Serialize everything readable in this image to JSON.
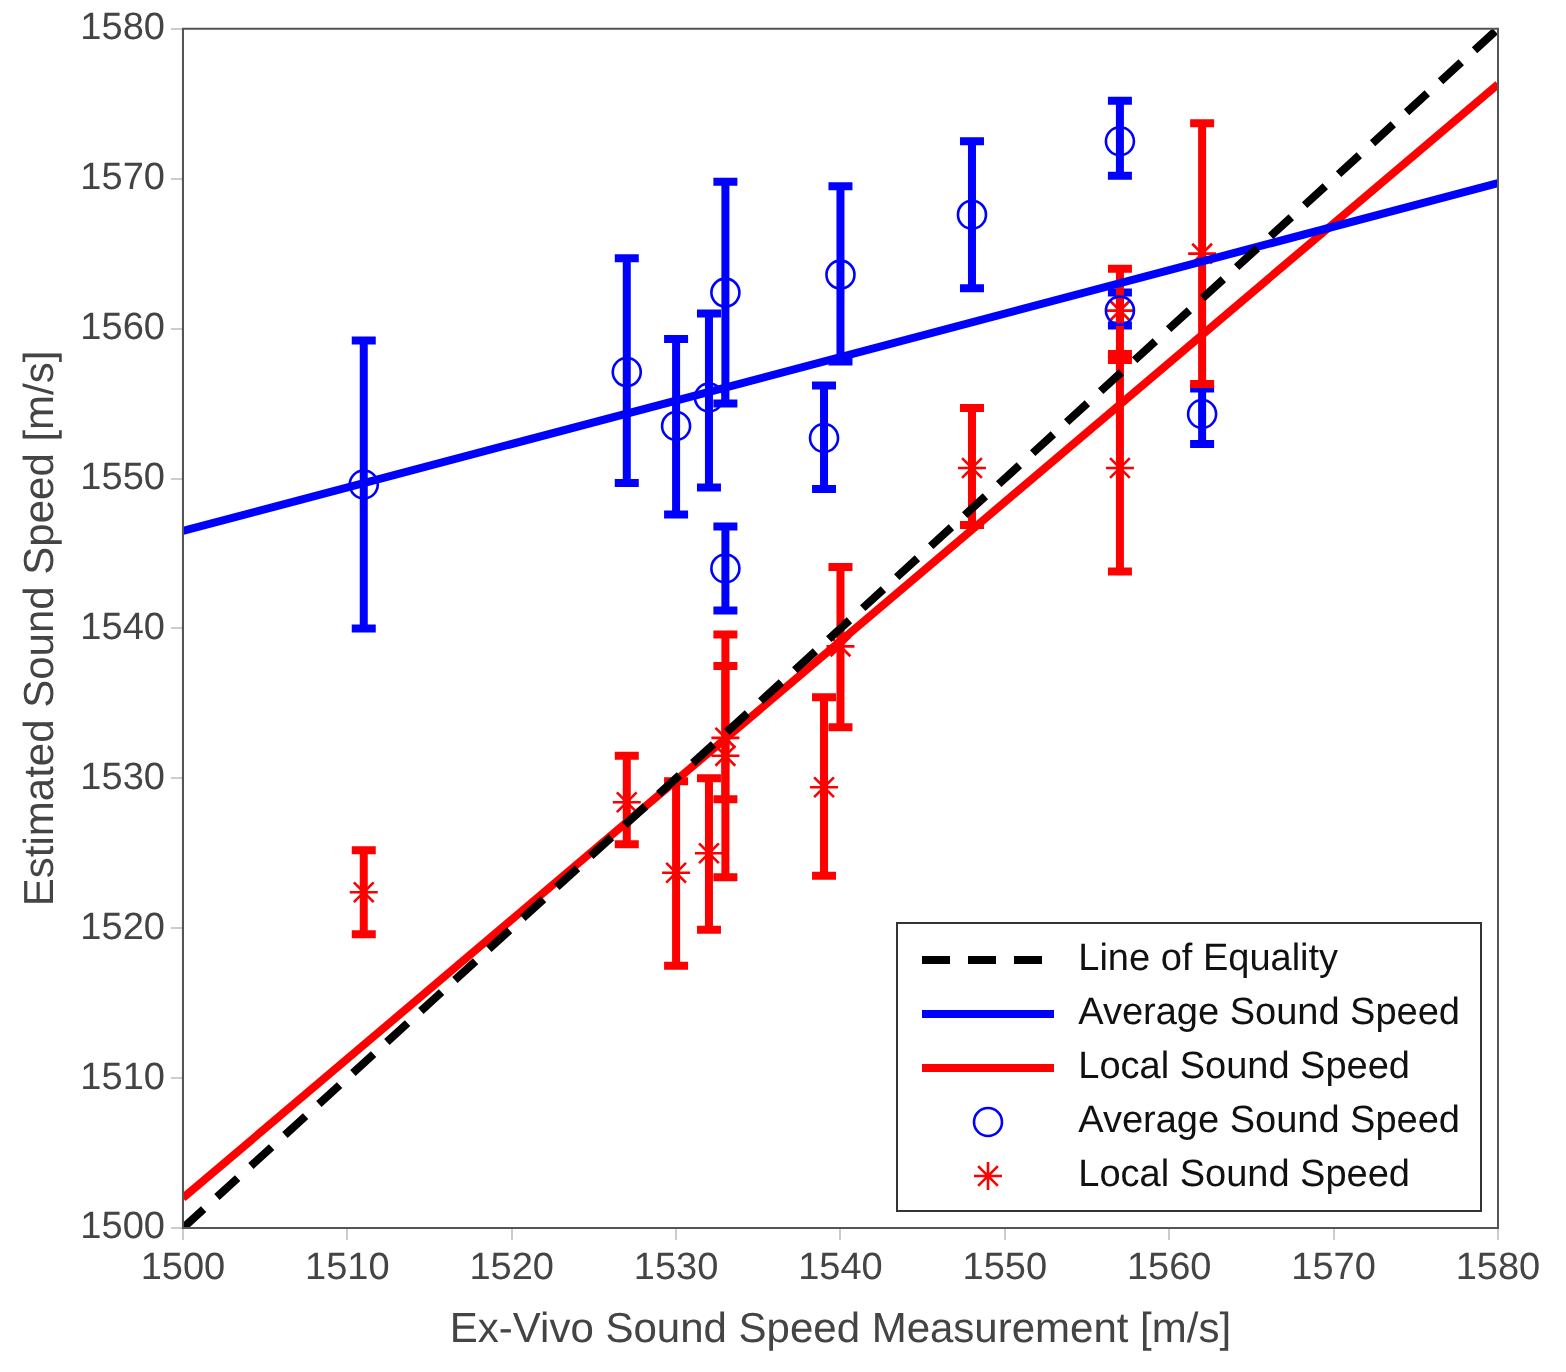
{
  "chart_data": {
    "type": "scatter",
    "xlabel": "Ex-Vivo Sound Speed Measurement [m/s]",
    "ylabel": "Estimated Sound Speed [m/s]",
    "xlim": [
      1500,
      1580
    ],
    "xticks": [
      1500,
      1510,
      1520,
      1530,
      1540,
      1550,
      1560,
      1570,
      1580
    ],
    "ylim": [
      1500,
      1580
    ],
    "yticks": [
      1500,
      1510,
      1520,
      1530,
      1540,
      1550,
      1560,
      1570,
      1580
    ],
    "legend": "bottom right",
    "series": [
      {
        "name": "Line of Equality",
        "type": "line",
        "color": "#000000",
        "line_style": "dashed",
        "marker": "none",
        "x": [
          1500,
          1580
        ],
        "values": [
          1500,
          1580
        ]
      },
      {
        "name": "Average Sound Speed",
        "type": "line",
        "color": "#0000ff",
        "line_style": "solid",
        "marker": "none",
        "x": [
          1500,
          1580
        ],
        "values": [
          1546.5,
          1569.7
        ]
      },
      {
        "name": "Local Sound Speed",
        "type": "line",
        "color": "#ff0000",
        "line_style": "solid",
        "marker": "none",
        "x": [
          1500,
          1580
        ],
        "values": [
          1502,
          1576.3
        ]
      },
      {
        "name": "Average Sound Speed",
        "type": "scatter",
        "color": "#0000ff",
        "marker": "circle",
        "x": [
          1511,
          1527,
          1530,
          1532,
          1533,
          1533,
          1539,
          1540,
          1548,
          1557,
          1557,
          1562
        ],
        "values": [
          1549.6,
          1557.1,
          1553.5,
          1555.4,
          1562.4,
          1544.0,
          1552.7,
          1563.6,
          1567.6,
          1572.5,
          1561.2,
          1554.3
        ],
        "errors": [
          [
            1540,
            1559.2
          ],
          [
            1549.7,
            1564.7
          ],
          [
            1547.6,
            1559.3
          ],
          [
            1549.4,
            1561
          ],
          [
            1555,
            1569.8
          ],
          [
            1541.2,
            1546.8
          ],
          [
            1549.3,
            1556.2
          ],
          [
            1557.8,
            1569.5
          ],
          [
            1562.7,
            1572.5
          ],
          [
            1570.2,
            1575.2
          ],
          [
            1560.2,
            1562.4
          ],
          [
            1552.3,
            1556
          ]
        ]
      },
      {
        "name": "Local Sound Speed",
        "type": "scatter",
        "color": "#ff0000",
        "marker": "cross",
        "x": [
          1511,
          1527,
          1530,
          1532,
          1533,
          1533,
          1539,
          1540,
          1548,
          1557,
          1557,
          1562
        ],
        "values": [
          1522.4,
          1528.4,
          1523.7,
          1525,
          1532.7,
          1531.5,
          1529.4,
          1538.8,
          1550.7,
          1561.2,
          1550.7,
          1565
        ],
        "errors": [
          [
            1519.6,
            1525.2
          ],
          [
            1525.6,
            1531.5
          ],
          [
            1517.5,
            1529.8
          ],
          [
            1519.9,
            1530
          ],
          [
            1528.6,
            1539.6
          ],
          [
            1523.4,
            1537.5
          ],
          [
            1523.5,
            1535.4
          ],
          [
            1533.4,
            1544.1
          ],
          [
            1546.9,
            1554.7
          ],
          [
            1557.9,
            1564
          ],
          [
            1543.8,
            1558.3
          ],
          [
            1556.3,
            1573.7
          ]
        ]
      }
    ]
  }
}
